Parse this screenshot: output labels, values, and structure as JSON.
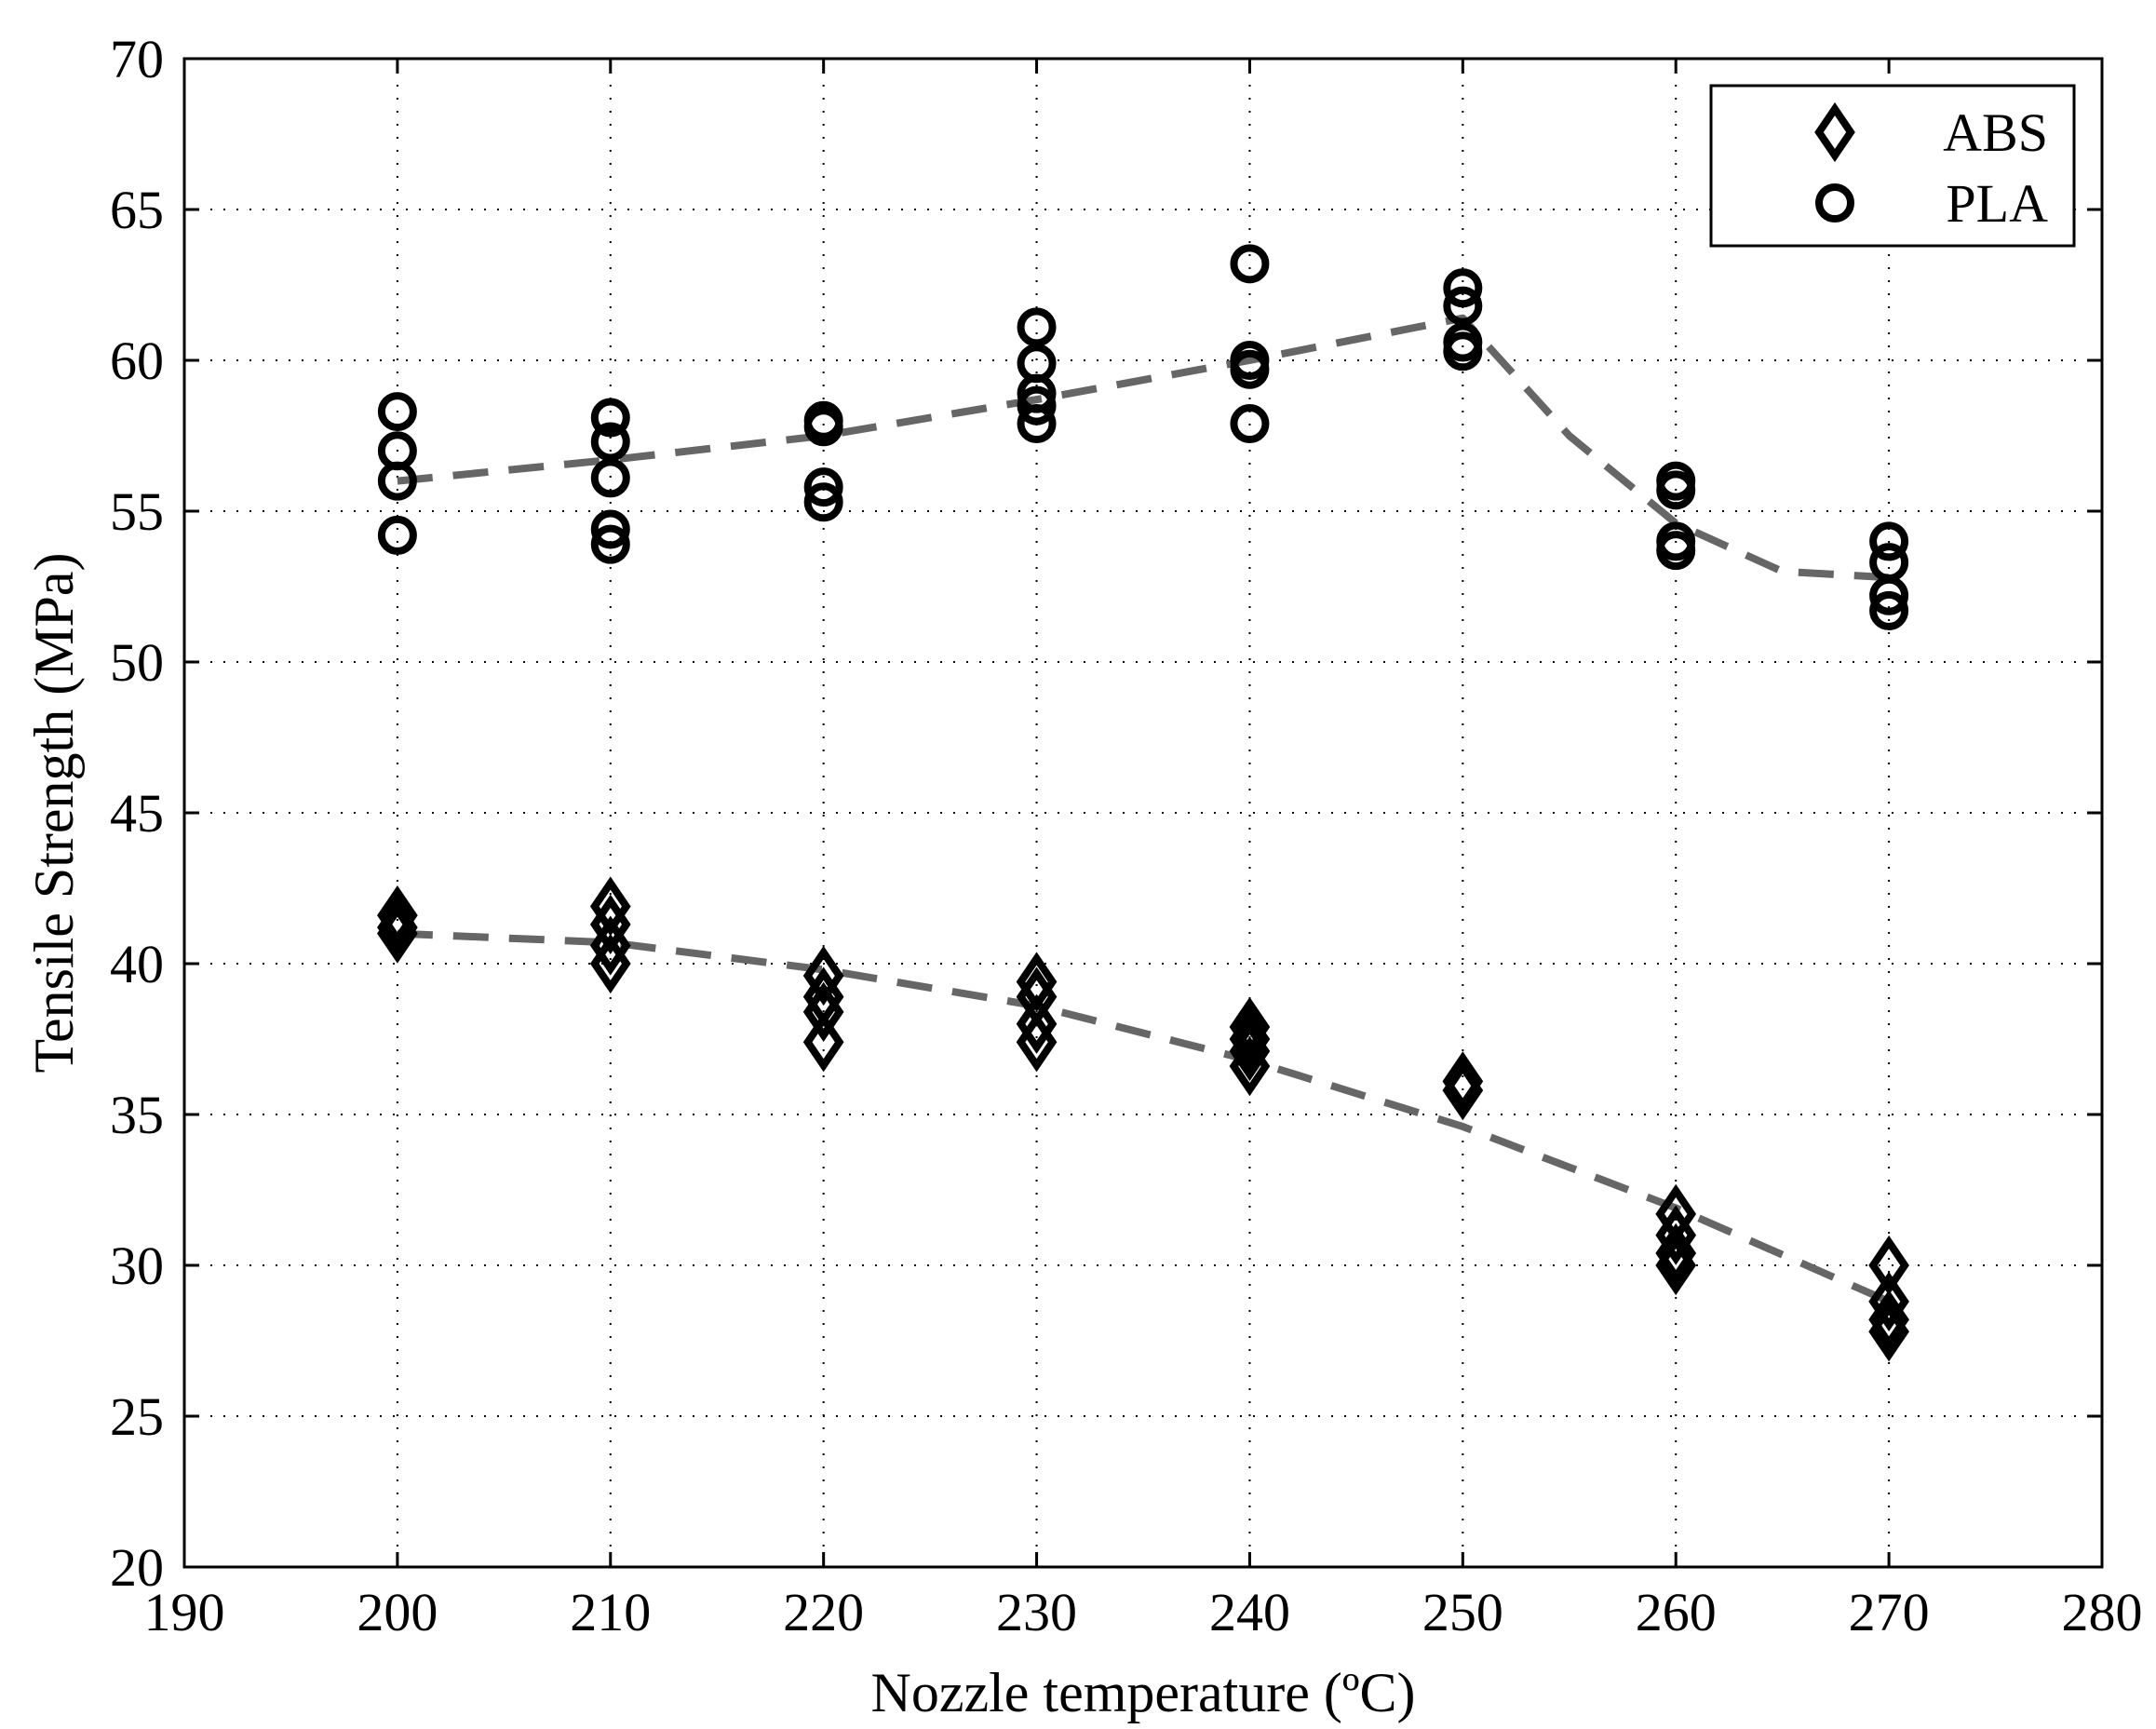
{
  "chart_data": {
    "type": "scatter",
    "title": "",
    "xlabel": "Nozzle temperature (ºC)",
    "ylabel": "Tensile Strength (MPa)",
    "xlim": [
      190,
      280
    ],
    "ylim": [
      20,
      70
    ],
    "xticks": [
      190,
      200,
      210,
      220,
      230,
      240,
      250,
      260,
      270,
      280
    ],
    "yticks": [
      20,
      25,
      30,
      35,
      40,
      45,
      50,
      55,
      60,
      65,
      70
    ],
    "grid": true,
    "legend_position": "top-right",
    "series": [
      {
        "name": "ABS",
        "marker": "diamond",
        "color": "#000000",
        "points": [
          [
            200,
            41.6
          ],
          [
            200,
            41.2
          ],
          [
            200,
            41.0
          ],
          [
            210,
            41.9
          ],
          [
            210,
            41.3
          ],
          [
            210,
            40.6
          ],
          [
            210,
            40.0
          ],
          [
            220,
            39.6
          ],
          [
            220,
            38.9
          ],
          [
            220,
            38.4
          ],
          [
            220,
            37.4
          ],
          [
            230,
            39.4
          ],
          [
            230,
            38.9
          ],
          [
            230,
            38.0
          ],
          [
            230,
            37.4
          ],
          [
            240,
            37.9
          ],
          [
            240,
            37.5
          ],
          [
            240,
            37.1
          ],
          [
            240,
            36.6
          ],
          [
            250,
            36.1
          ],
          [
            250,
            35.8
          ],
          [
            260,
            31.7
          ],
          [
            260,
            31.0
          ],
          [
            260,
            30.4
          ],
          [
            260,
            30.0
          ],
          [
            270,
            30.0
          ],
          [
            270,
            28.8
          ],
          [
            270,
            28.2
          ],
          [
            270,
            27.8
          ]
        ],
        "trend": [
          [
            200,
            41.0
          ],
          [
            210,
            40.7
          ],
          [
            220,
            39.8
          ],
          [
            230,
            38.6
          ],
          [
            240,
            36.8
          ],
          [
            250,
            34.6
          ],
          [
            260,
            31.9
          ],
          [
            270,
            28.8
          ]
        ]
      },
      {
        "name": "PLA",
        "marker": "circle",
        "color": "#000000",
        "points": [
          [
            200,
            58.3
          ],
          [
            200,
            57.0
          ],
          [
            200,
            56.0
          ],
          [
            200,
            54.2
          ],
          [
            210,
            58.1
          ],
          [
            210,
            57.3
          ],
          [
            210,
            56.1
          ],
          [
            210,
            54.4
          ],
          [
            210,
            53.9
          ],
          [
            220,
            58.0
          ],
          [
            220,
            57.8
          ],
          [
            220,
            55.8
          ],
          [
            220,
            55.3
          ],
          [
            230,
            61.1
          ],
          [
            230,
            59.9
          ],
          [
            230,
            58.9
          ],
          [
            230,
            58.5
          ],
          [
            230,
            57.9
          ],
          [
            240,
            63.2
          ],
          [
            240,
            60.0
          ],
          [
            240,
            59.7
          ],
          [
            240,
            57.9
          ],
          [
            250,
            62.4
          ],
          [
            250,
            61.8
          ],
          [
            250,
            60.6
          ],
          [
            250,
            60.3
          ],
          [
            260,
            56.0
          ],
          [
            260,
            55.7
          ],
          [
            260,
            54.0
          ],
          [
            260,
            53.7
          ],
          [
            270,
            54.0
          ],
          [
            270,
            53.3
          ],
          [
            270,
            52.2
          ],
          [
            270,
            51.7
          ]
        ],
        "trend": [
          [
            200,
            56.0
          ],
          [
            210,
            56.7
          ],
          [
            220,
            57.5
          ],
          [
            230,
            58.7
          ],
          [
            240,
            60.0
          ],
          [
            250,
            61.4
          ],
          [
            255,
            57.5
          ],
          [
            260,
            54.6
          ],
          [
            265,
            53.0
          ],
          [
            270,
            52.8
          ]
        ]
      }
    ]
  }
}
